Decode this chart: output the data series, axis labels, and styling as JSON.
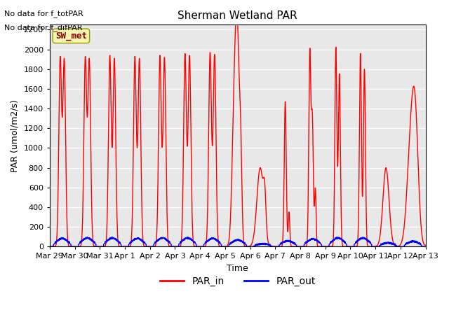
{
  "title": "Sherman Wetland PAR",
  "xlabel": "Time",
  "ylabel": "PAR (umol/m2/s)",
  "ylim": [
    0,
    2250
  ],
  "yticks": [
    0,
    200,
    400,
    600,
    800,
    1000,
    1200,
    1400,
    1600,
    1800,
    2000,
    2200
  ],
  "background_color": "#e8e8e8",
  "no_data_text": [
    "No data for f_totPAR",
    "No data for f_difPAR"
  ],
  "legend_label": "SW_met",
  "legend_label_color": "#8B0000",
  "legend_box_color": "#f5f5b0",
  "series": {
    "PAR_in": {
      "color": "red",
      "lw": 1.0
    },
    "PAR_out": {
      "color": "blue",
      "lw": 1.0
    }
  },
  "x_tick_labels": [
    "Mar 29",
    "Mar 30",
    "Mar 31",
    "Apr 1",
    "Apr 2",
    "Apr 3",
    "Apr 4",
    "Apr 5",
    "Apr 6",
    "Apr 7",
    "Apr 8",
    "Apr 9",
    "Apr 10",
    "Apr 11",
    "Apr 12",
    "Apr 13"
  ],
  "x_tick_positions": [
    0,
    1,
    2,
    3,
    4,
    5,
    6,
    7,
    8,
    9,
    10,
    11,
    12,
    13,
    14,
    15
  ]
}
